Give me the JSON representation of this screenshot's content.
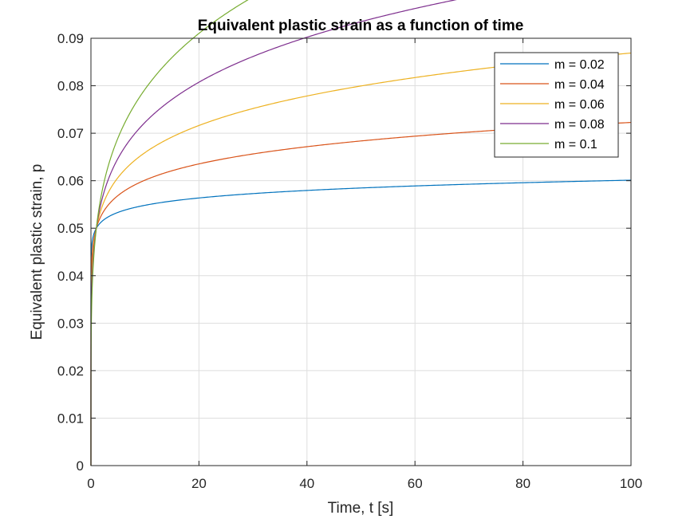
{
  "chart_data": {
    "type": "line",
    "title": "Equivalent plastic strain as a function of time",
    "xlabel": "Time, t [s]",
    "ylabel": "Equivalent plastic strain, p",
    "xlim": [
      0,
      100
    ],
    "ylim": [
      0,
      0.09
    ],
    "xticks": [
      0,
      20,
      40,
      60,
      80,
      100
    ],
    "xtick_labels": [
      "0",
      "20",
      "40",
      "60",
      "80",
      "100"
    ],
    "yticks": [
      0,
      0.01,
      0.02,
      0.03,
      0.04,
      0.05,
      0.06,
      0.07,
      0.08,
      0.09
    ],
    "ytick_labels": [
      "0",
      "0.01",
      "0.02",
      "0.03",
      "0.04",
      "0.05",
      "0.06",
      "0.07",
      "0.08",
      "0.09"
    ],
    "grid": true,
    "legend_position": "top-right",
    "series": [
      {
        "name": "m = 0.02",
        "color": "#0072BD",
        "a": 0.05,
        "m": 0.02
      },
      {
        "name": "m = 0.04",
        "color": "#D95319",
        "a": 0.05,
        "m": 0.04
      },
      {
        "name": "m = 0.06",
        "color": "#EDB120",
        "a": 0.05,
        "m": 0.06
      },
      {
        "name": "m = 0.08",
        "color": "#7E2F8E",
        "a": 0.05,
        "m": 0.08
      },
      {
        "name": "m = 0.1",
        "color": "#77AC30",
        "a": 0.05,
        "m": 0.1
      }
    ],
    "model": "p = a * t^(2m)"
  }
}
